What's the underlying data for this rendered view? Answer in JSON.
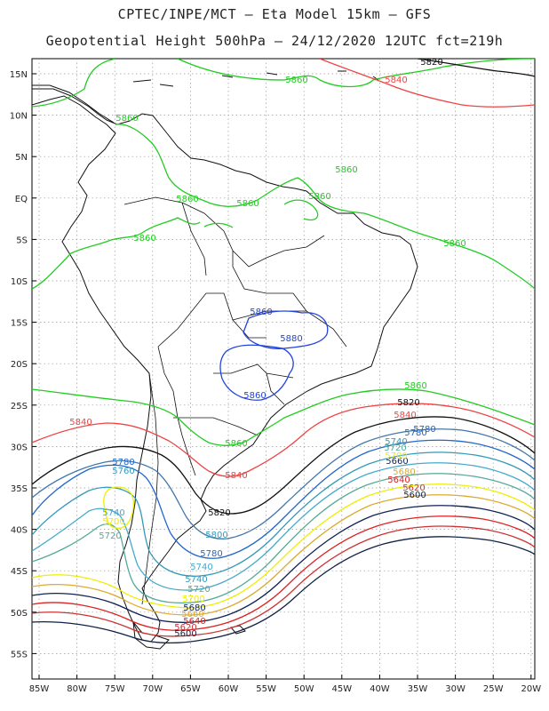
{
  "title_line1": "CPTEC/INPE/MCT –  Eta Model 15km – GFS",
  "title_line2": "Geopotential Height 500hPa – 24/12/2020 12UTC fct=219h",
  "lon_labels": [
    "85W",
    "80W",
    "75W",
    "70W",
    "65W",
    "60W",
    "55W",
    "50W",
    "45W",
    "40W",
    "35W",
    "30W",
    "25W",
    "20W"
  ],
  "lat_labels": [
    "15N",
    "10N",
    "5N",
    "EQ",
    "5S",
    "10S",
    "15S",
    "20S",
    "25S",
    "30S",
    "35S",
    "40S",
    "45S",
    "50S",
    "55S"
  ],
  "contour_colors": {
    "5860": "#22cc22",
    "5840": "#ee4444",
    "5820": "#111111",
    "5800": "#4477aa",
    "5780": "#2266cc",
    "5760": "#3399bb",
    "5740": "#44aacc",
    "5720": "#55aa99",
    "5700": "#eeee00",
    "5680": "#ddaa33",
    "5660": "#112255",
    "5640": "#dd2222",
    "5620": "#cc3333",
    "5600": "#112244",
    "inner": "#2244dd"
  },
  "contour_labels": [
    {
      "text": "5820",
      "color_key": "5820"
    },
    {
      "text": "5840",
      "color_key": "5840"
    },
    {
      "text": "5860",
      "color_key": "5860"
    },
    {
      "text": "5860",
      "color_key": "5860"
    },
    {
      "text": "5860",
      "color_key": "5860"
    },
    {
      "text": "5860",
      "color_key": "5860"
    },
    {
      "text": "5860",
      "color_key": "5860"
    },
    {
      "text": "5860",
      "color_key": "5860"
    },
    {
      "text": "5860",
      "color_key": "5860"
    },
    {
      "text": "5860",
      "color_key": "5860"
    },
    {
      "text": "5860",
      "color_key": "inner"
    },
    {
      "text": "5880",
      "color_key": "inner"
    },
    {
      "text": "5860",
      "color_key": "inner"
    },
    {
      "text": "5860",
      "color_key": "5860"
    },
    {
      "text": "5840",
      "color_key": "5840"
    },
    {
      "text": "5820",
      "color_key": "5820"
    },
    {
      "text": "5840",
      "color_key": "5840"
    },
    {
      "text": "5860",
      "color_key": "5860"
    },
    {
      "text": "5840",
      "color_key": "5840"
    },
    {
      "text": "5780",
      "color_key": "5780"
    },
    {
      "text": "5760",
      "color_key": "5760"
    },
    {
      "text": "5740",
      "color_key": "5740"
    },
    {
      "text": "5720",
      "color_key": "5720"
    },
    {
      "text": "5700",
      "color_key": "5700"
    },
    {
      "text": "5660",
      "color_key": "5660"
    },
    {
      "text": "5680",
      "color_key": "5680"
    },
    {
      "text": "5640",
      "color_key": "5640"
    },
    {
      "text": "5620",
      "color_key": "5620"
    },
    {
      "text": "5600",
      "color_key": "5600"
    },
    {
      "text": "5780",
      "color_key": "5780"
    },
    {
      "text": "5740",
      "color_key": "5760"
    },
    {
      "text": "5780",
      "color_key": "5780"
    },
    {
      "text": "5700",
      "color_key": "5700"
    },
    {
      "text": "5720",
      "color_key": "5720"
    },
    {
      "text": "5820",
      "color_key": "5820"
    },
    {
      "text": "5800",
      "color_key": "5760"
    },
    {
      "text": "5780",
      "color_key": "5780"
    },
    {
      "text": "5740",
      "color_key": "5740"
    },
    {
      "text": "5740",
      "color_key": "5760"
    },
    {
      "text": "5720",
      "color_key": "5720"
    },
    {
      "text": "5700",
      "color_key": "5700"
    },
    {
      "text": "5680",
      "color_key": "5660"
    },
    {
      "text": "5660",
      "color_key": "5680"
    },
    {
      "text": "5640",
      "color_key": "5640"
    },
    {
      "text": "5620",
      "color_key": "5620"
    },
    {
      "text": "5600",
      "color_key": "5600"
    }
  ]
}
